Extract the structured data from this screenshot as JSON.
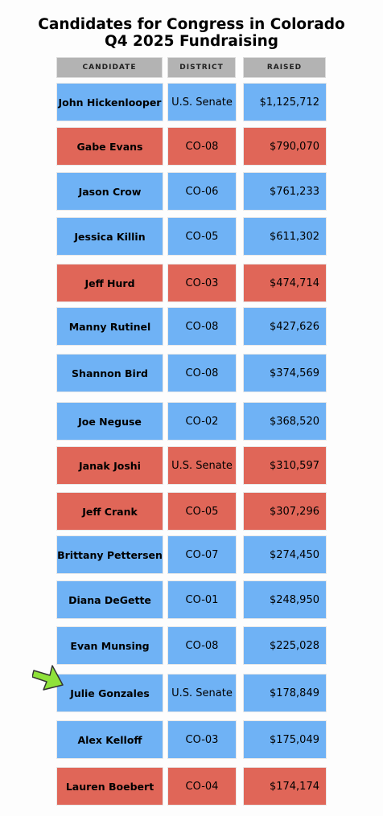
{
  "chart_data": {
    "type": "table",
    "title_line1": "Candidates for Congress in Colorado",
    "title_line2": "Q4 2025 Fundraising",
    "columns": [
      "CANDIDATE",
      "DISTRICT",
      "RAISED"
    ],
    "party_colors": {
      "blue": "#6fb2f5",
      "red": "#e06658"
    },
    "rows": [
      {
        "candidate": "John Hickenlooper",
        "district": "U.S. Senate",
        "raised": "$1,125,712",
        "color": "blue"
      },
      {
        "candidate": "Gabe Evans",
        "district": "CO-08",
        "raised": "$790,070",
        "color": "red"
      },
      {
        "candidate": "Jason Crow",
        "district": "CO-06",
        "raised": "$761,233",
        "color": "blue"
      },
      {
        "candidate": "Jessica Killin",
        "district": "CO-05",
        "raised": "$611,302",
        "color": "blue"
      },
      {
        "candidate": "Jeff Hurd",
        "district": "CO-03",
        "raised": "$474,714",
        "color": "red"
      },
      {
        "candidate": "Manny Rutinel",
        "district": "CO-08",
        "raised": "$427,626",
        "color": "blue"
      },
      {
        "candidate": "Shannon Bird",
        "district": "CO-08",
        "raised": "$374,569",
        "color": "blue"
      },
      {
        "candidate": "Joe Neguse",
        "district": "CO-02",
        "raised": "$368,520",
        "color": "blue"
      },
      {
        "candidate": "Janak Joshi",
        "district": "U.S. Senate",
        "raised": "$310,597",
        "color": "red"
      },
      {
        "candidate": "Jeff Crank",
        "district": "CO-05",
        "raised": "$307,296",
        "color": "red"
      },
      {
        "candidate": "Brittany Pettersen",
        "district": "CO-07",
        "raised": "$274,450",
        "color": "blue"
      },
      {
        "candidate": "Diana DeGette",
        "district": "CO-01",
        "raised": "$248,950",
        "color": "blue"
      },
      {
        "candidate": "Evan Munsing",
        "district": "CO-08",
        "raised": "$225,028",
        "color": "blue"
      },
      {
        "candidate": "Julie Gonzales",
        "district": "U.S. Senate",
        "raised": "$178,849",
        "color": "blue"
      },
      {
        "candidate": "Alex Kelloff",
        "district": "CO-03",
        "raised": "$175,049",
        "color": "blue"
      },
      {
        "candidate": "Lauren Boebert",
        "district": "CO-04",
        "raised": "$174,174",
        "color": "red"
      }
    ],
    "highlight_arrow": {
      "row": "Julie Gonzales",
      "color": "#8fe23a",
      "icon": "pointer-arrow-icon"
    }
  }
}
